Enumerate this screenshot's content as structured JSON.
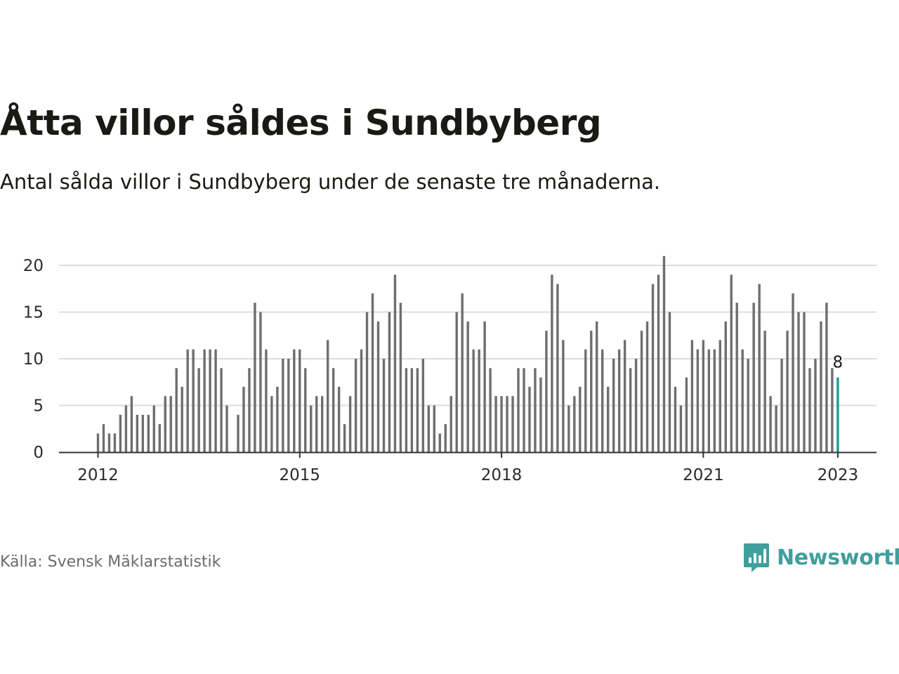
{
  "title": "Åtta villor såldes i Sundbyberg",
  "subtitle": "Antal sålda villor i Sundbyberg under de senaste tre månaderna.",
  "source": "Källa: Svensk Mäklarstatistik",
  "brand": {
    "name": "Newsworthy",
    "logo_icon": "bar-chart-speech-bubble-icon"
  },
  "colors": {
    "bar": "#6e6e6e",
    "highlight": "#1a9a96",
    "grid": "#dcdcdc",
    "brand": "#3f9f9c"
  },
  "chart_data": {
    "type": "bar",
    "x_start": "2012-01",
    "x_interval": "month",
    "y_ticks": [
      0,
      5,
      10,
      15,
      20
    ],
    "x_ticks": [
      {
        "label": "2012",
        "date": "2012-01"
      },
      {
        "label": "2015",
        "date": "2015-01"
      },
      {
        "label": "2018",
        "date": "2018-01"
      },
      {
        "label": "2021",
        "date": "2021-01"
      },
      {
        "label": "2023",
        "date": "2023-01"
      }
    ],
    "ylim": [
      0,
      21
    ],
    "grid": true,
    "values": [
      2,
      3,
      2,
      2,
      4,
      5,
      6,
      4,
      4,
      4,
      5,
      3,
      6,
      6,
      9,
      7,
      11,
      11,
      9,
      11,
      11,
      11,
      9,
      5,
      null,
      4,
      7,
      9,
      16,
      15,
      11,
      6,
      7,
      10,
      10,
      11,
      11,
      9,
      5,
      6,
      6,
      12,
      9,
      7,
      3,
      6,
      10,
      11,
      15,
      17,
      14,
      10,
      15,
      19,
      16,
      9,
      9,
      9,
      10,
      5,
      5,
      2,
      3,
      6,
      15,
      17,
      14,
      11,
      11,
      14,
      9,
      6,
      6,
      6,
      6,
      9,
      9,
      7,
      9,
      8,
      13,
      19,
      18,
      12,
      5,
      6,
      7,
      11,
      13,
      14,
      11,
      7,
      10,
      11,
      12,
      9,
      10,
      13,
      14,
      18,
      19,
      21,
      15,
      7,
      5,
      8,
      12,
      11,
      12,
      11,
      11,
      12,
      14,
      19,
      16,
      11,
      10,
      16,
      18,
      13,
      6,
      5,
      10,
      13,
      17,
      15,
      15,
      9,
      10,
      14,
      16,
      9,
      8
    ],
    "highlight_index": 132,
    "highlight_label": "8"
  }
}
